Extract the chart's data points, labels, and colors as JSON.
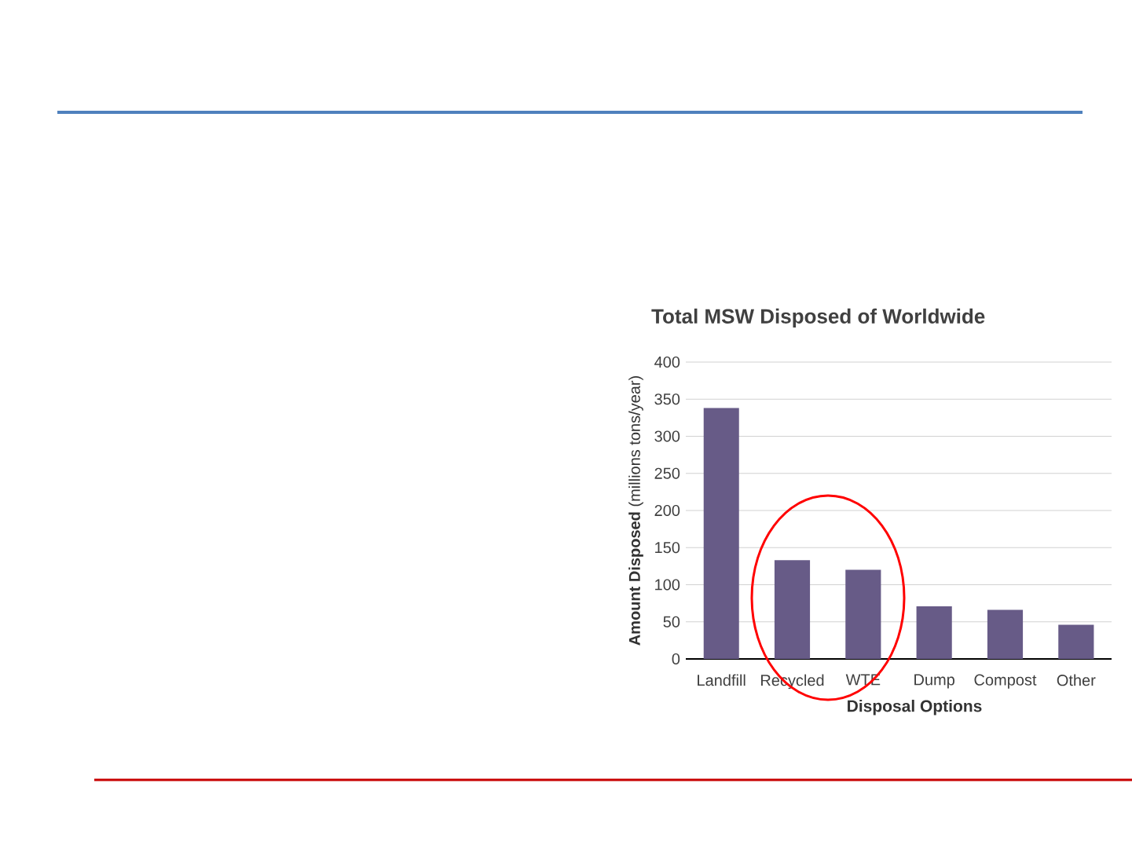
{
  "chart_data": {
    "type": "bar",
    "title": "Total MSW Disposed of Worldwide",
    "xlabel": "Disposal Options",
    "ylabel": "**Amount Disposed** (millions tons/year)",
    "categories": [
      "Landfill",
      "Recycled",
      "WTE",
      "Dump",
      "Compost",
      "Other"
    ],
    "values": [
      338,
      133,
      120,
      71,
      66,
      46
    ],
    "color": "#675b87",
    "ylim": [
      0,
      400
    ],
    "yticks": [
      0,
      50,
      100,
      150,
      200,
      250,
      300,
      350,
      400
    ],
    "grid": "y"
  }
}
